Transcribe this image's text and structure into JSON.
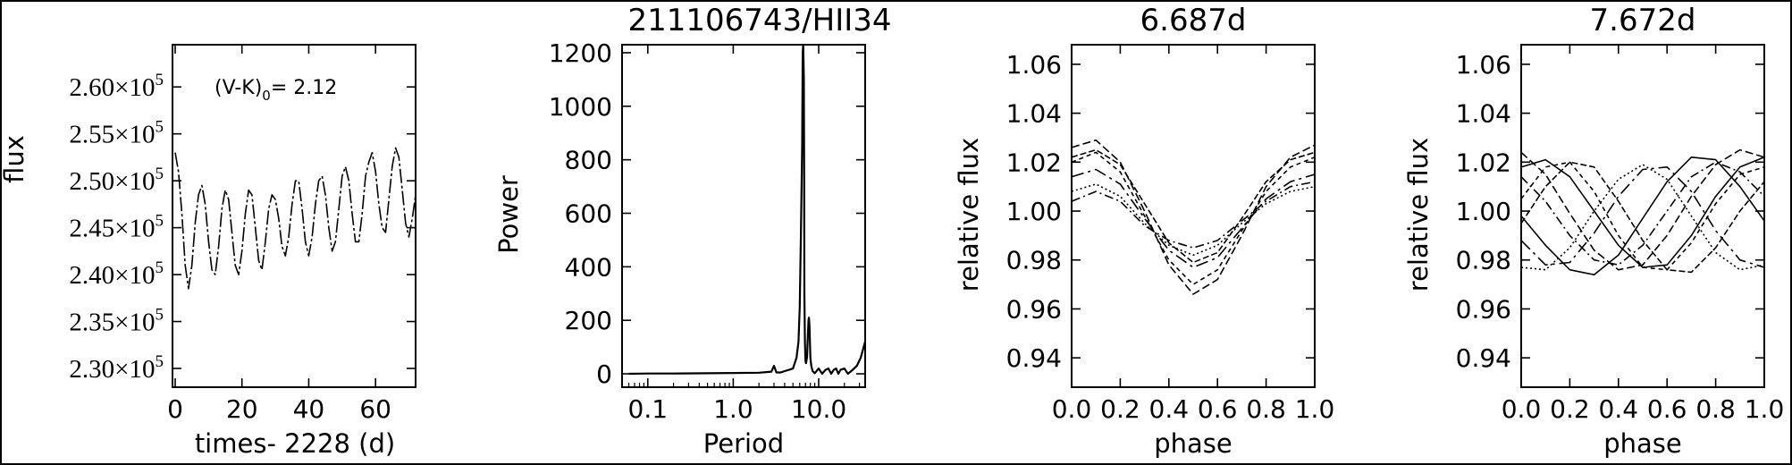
{
  "chart_data": [
    {
      "type": "line",
      "title": "",
      "xlabel": "times- 2228 (d)",
      "ylabel": "flux",
      "xlim": [
        -0.8,
        72
      ],
      "ylim": [
        228000,
        264500
      ],
      "xticks": [
        0,
        20,
        40,
        60
      ],
      "xtick_labels": [
        "0",
        "20",
        "40",
        "60"
      ],
      "yticks": [
        230000,
        235000,
        240000,
        245000,
        250000,
        255000,
        260000
      ],
      "ytick_labels": [
        {
          "mant": "2.30",
          "base": "×10",
          "exp": "5"
        },
        {
          "mant": "2.35",
          "base": "×10",
          "exp": "5"
        },
        {
          "mant": "2.40",
          "base": "×10",
          "exp": "5"
        },
        {
          "mant": "2.45",
          "base": "×10",
          "exp": "5"
        },
        {
          "mant": "2.50",
          "base": "×10",
          "exp": "5"
        },
        {
          "mant": "2.55",
          "base": "×10",
          "exp": "5"
        },
        {
          "mant": "2.60",
          "base": "×10",
          "exp": "5"
        }
      ],
      "annotation": {
        "pre": "(V-K)",
        "sub": "0",
        "post": "= 2.12"
      },
      "series": [
        {
          "x": [
            0,
            1,
            2,
            3,
            4,
            5,
            6,
            7,
            8,
            9,
            10,
            11,
            12,
            13,
            14,
            15,
            16,
            17,
            18,
            19,
            20,
            21,
            22,
            23,
            24,
            25,
            26,
            27,
            28,
            29,
            30,
            31,
            32,
            33,
            34,
            35,
            36,
            37,
            38,
            39,
            40,
            41,
            42,
            43,
            44,
            45,
            46,
            47,
            48,
            49,
            50,
            51,
            52,
            53,
            54,
            55,
            56,
            57,
            58,
            59,
            60,
            61,
            62,
            63,
            64,
            65,
            66,
            67,
            68,
            69,
            70,
            71,
            72
          ],
          "y": [
            253000,
            251000,
            246500,
            241000,
            238500,
            241000,
            245500,
            248500,
            249500,
            247500,
            243500,
            240500,
            240000,
            243000,
            247000,
            249000,
            248000,
            244500,
            241000,
            240000,
            242500,
            246500,
            249000,
            248500,
            245000,
            241500,
            240500,
            243500,
            247000,
            248500,
            248000,
            246000,
            243000,
            242000,
            244000,
            247500,
            250000,
            250000,
            247000,
            243500,
            242000,
            244000,
            247500,
            250000,
            250500,
            248500,
            245000,
            242500,
            243500,
            247000,
            250500,
            251500,
            250000,
            246500,
            243500,
            243500,
            246500,
            250500,
            252000,
            253000,
            251000,
            247500,
            245000,
            244500,
            248000,
            251500,
            253500,
            252500,
            249000,
            245500,
            244000,
            246000,
            248500
          ]
        }
      ]
    },
    {
      "type": "line",
      "title": "211106743/HII34",
      "xlabel": "Period",
      "ylabel": "Power",
      "xscale": "log",
      "xlim": [
        0.05,
        35
      ],
      "ylim": [
        -50,
        1230
      ],
      "xticks": [
        0.1,
        1.0,
        10.0
      ],
      "xtick_labels": [
        "0.1",
        "1.0",
        "10.0"
      ],
      "yticks": [
        0,
        200,
        400,
        600,
        800,
        1000,
        1200
      ],
      "ytick_labels": [
        "0",
        "200",
        "400",
        "600",
        "800",
        "1000",
        "1200"
      ],
      "series": [
        {
          "x": [
            0.06,
            0.1,
            0.2,
            0.5,
            1.0,
            2.0,
            2.8,
            3.0,
            3.2,
            3.6,
            4.0,
            4.5,
            5.0,
            5.5,
            5.8,
            6.0,
            6.2,
            6.4,
            6.5,
            6.6,
            6.7,
            6.75,
            6.8,
            6.9,
            7.0,
            7.1,
            7.3,
            7.6,
            7.7,
            7.8,
            7.9,
            8.0,
            8.2,
            8.5,
            9.0,
            10.0,
            11,
            12,
            13,
            14,
            15,
            16,
            17,
            18,
            20,
            22,
            25,
            28,
            31,
            35
          ],
          "y": [
            0,
            1,
            1,
            2,
            3,
            4,
            8,
            30,
            5,
            5,
            10,
            15,
            20,
            60,
            120,
            250,
            520,
            850,
            1200,
            1230,
            1100,
            800,
            300,
            120,
            50,
            40,
            60,
            200,
            210,
            180,
            120,
            60,
            30,
            10,
            2,
            20,
            0,
            15,
            20,
            0,
            15,
            20,
            0,
            15,
            20,
            0,
            15,
            30,
            60,
            120
          ]
        }
      ]
    },
    {
      "type": "line",
      "title": "6.687d",
      "xlabel": "phase",
      "ylabel": "relative flux",
      "xlim": [
        0.0,
        1.0
      ],
      "ylim": [
        0.928,
        1.068
      ],
      "xticks": [
        0.0,
        0.2,
        0.4,
        0.6,
        0.8,
        1.0
      ],
      "xtick_labels": [
        "0.0",
        "0.2",
        "0.4",
        "0.6",
        "0.8",
        "1.0"
      ],
      "yticks": [
        0.94,
        0.96,
        0.98,
        1.0,
        1.02,
        1.04,
        1.06
      ],
      "ytick_labels": [
        "0.94",
        "0.96",
        "0.98",
        "1.00",
        "1.02",
        "1.04",
        "1.06"
      ],
      "series": [
        {
          "x": [
            0.0,
            0.1,
            0.2,
            0.3,
            0.4,
            0.5,
            0.6,
            0.7,
            0.8,
            0.9,
            1.0
          ],
          "y": [
            1.026,
            1.029,
            1.02,
            1.0,
            0.978,
            0.966,
            0.972,
            0.99,
            1.01,
            1.022,
            1.027
          ]
        },
        {
          "x": [
            0.0,
            0.1,
            0.2,
            0.3,
            0.4,
            0.5,
            0.6,
            0.7,
            0.8,
            0.9,
            1.0
          ],
          "y": [
            1.02,
            1.024,
            1.016,
            0.998,
            0.98,
            0.97,
            0.976,
            0.992,
            1.008,
            1.018,
            1.022
          ]
        },
        {
          "x": [
            0.0,
            0.1,
            0.2,
            0.3,
            0.4,
            0.5,
            0.6,
            0.7,
            0.8,
            0.9,
            1.0
          ],
          "y": [
            1.014,
            1.017,
            1.011,
            0.997,
            0.984,
            0.977,
            0.981,
            0.993,
            1.005,
            1.012,
            1.015
          ]
        },
        {
          "x": [
            0.0,
            0.1,
            0.2,
            0.3,
            0.4,
            0.5,
            0.6,
            0.7,
            0.8,
            0.9,
            1.0
          ],
          "y": [
            1.008,
            1.011,
            1.006,
            0.995,
            0.986,
            0.982,
            0.986,
            0.995,
            1.003,
            1.008,
            1.01
          ]
        },
        {
          "x": [
            0.0,
            0.1,
            0.2,
            0.3,
            0.4,
            0.5,
            0.6,
            0.7,
            0.8,
            0.9,
            1.0
          ],
          "y": [
            1.004,
            1.008,
            1.004,
            0.994,
            0.988,
            0.985,
            0.988,
            0.996,
            1.004,
            1.01,
            1.012
          ]
        },
        {
          "x": [
            0.0,
            0.1,
            0.2,
            0.3,
            0.4,
            0.5,
            0.6,
            0.7,
            0.8,
            0.9,
            1.0
          ],
          "y": [
            1.022,
            1.025,
            1.019,
            1.003,
            0.987,
            0.979,
            0.983,
            0.997,
            1.012,
            1.021,
            1.024
          ]
        }
      ]
    },
    {
      "type": "line",
      "title": "7.672d",
      "xlabel": "phase",
      "ylabel": "relative flux",
      "xlim": [
        0.0,
        1.0
      ],
      "ylim": [
        0.928,
        1.068
      ],
      "xticks": [
        0.0,
        0.2,
        0.4,
        0.6,
        0.8,
        1.0
      ],
      "xtick_labels": [
        "0.0",
        "0.2",
        "0.4",
        "0.6",
        "0.8",
        "1.0"
      ],
      "yticks": [
        0.94,
        0.96,
        0.98,
        1.0,
        1.02,
        1.04,
        1.06
      ],
      "ytick_labels": [
        "0.94",
        "0.96",
        "0.98",
        "1.00",
        "1.02",
        "1.04",
        "1.06"
      ],
      "series": [
        {
          "x": [
            0.0,
            0.1,
            0.2,
            0.3,
            0.4,
            0.5,
            0.6,
            0.7,
            0.8,
            0.9,
            1.0
          ],
          "y": [
            1.024,
            1.015,
            0.999,
            0.984,
            0.976,
            0.978,
            0.99,
            1.006,
            1.019,
            1.025,
            1.022
          ]
        },
        {
          "x": [
            0.0,
            0.1,
            0.2,
            0.3,
            0.4,
            0.5,
            0.6,
            0.7,
            0.8,
            0.9,
            1.0
          ],
          "y": [
            1.005,
            1.018,
            1.02,
            1.008,
            0.99,
            0.977,
            0.976,
            0.987,
            1.003,
            1.015,
            1.018
          ]
        },
        {
          "x": [
            0.0,
            0.1,
            0.2,
            0.3,
            0.4,
            0.5,
            0.6,
            0.7,
            0.8,
            0.9,
            1.0
          ],
          "y": [
            0.988,
            0.978,
            0.979,
            0.991,
            1.006,
            1.017,
            1.018,
            1.008,
            0.992,
            0.98,
            0.977
          ]
        },
        {
          "x": [
            0.0,
            0.1,
            0.2,
            0.3,
            0.4,
            0.5,
            0.6,
            0.7,
            0.8,
            0.9,
            1.0
          ],
          "y": [
            0.977,
            0.976,
            0.985,
            1.0,
            1.013,
            1.019,
            1.013,
            0.998,
            0.983,
            0.976,
            0.978
          ]
        },
        {
          "x": [
            0.0,
            0.1,
            0.2,
            0.3,
            0.4,
            0.5,
            0.6,
            0.7,
            0.8,
            0.9,
            1.0
          ],
          "y": [
            1.014,
            1.004,
            0.99,
            0.98,
            0.978,
            0.986,
            1.0,
            1.014,
            1.02,
            1.016,
            1.006
          ]
        },
        {
          "x": [
            0.0,
            0.1,
            0.2,
            0.3,
            0.4,
            0.5,
            0.6,
            0.7,
            0.8,
            0.9,
            1.0
          ],
          "y": [
            0.995,
            1.01,
            1.02,
            1.018,
            1.004,
            0.988,
            0.976,
            0.975,
            0.985,
            1.0,
            1.012
          ]
        },
        {
          "x": [
            0.0,
            0.1,
            0.2,
            0.3,
            0.4,
            0.5,
            0.6,
            0.7,
            0.8,
            0.9,
            1.0
          ],
          "y": [
            0.998,
            0.986,
            0.976,
            0.974,
            0.982,
            0.997,
            1.012,
            1.022,
            1.021,
            1.01,
            0.996
          ]
        },
        {
          "x": [
            0.0,
            0.1,
            0.2,
            0.3,
            0.4,
            0.5,
            0.6,
            0.7,
            0.8,
            0.9,
            1.0
          ],
          "y": [
            1.018,
            1.021,
            1.014,
            1.0,
            0.986,
            0.977,
            0.978,
            0.99,
            1.006,
            1.018,
            1.022
          ]
        }
      ]
    }
  ]
}
